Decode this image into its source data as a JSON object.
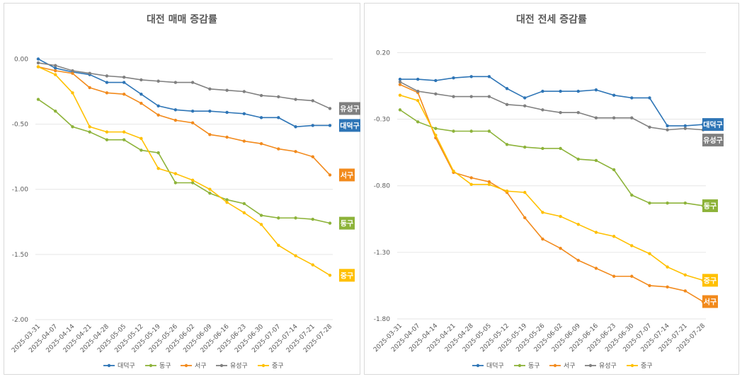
{
  "chart_data": [
    {
      "type": "line",
      "title": "대전 매매 증감률",
      "categories": [
        "2025-03-31",
        "2025-04-07",
        "2025-04-14",
        "2025-04-21",
        "2025-04-28",
        "2025-05-05",
        "2025-05-12",
        "2025-05-19",
        "2025-05-26",
        "2025-06-02",
        "2025-06-09",
        "2025-06-16",
        "2025-06-23",
        "2025-06-30",
        "2025-07-07",
        "2025-07-14",
        "2025-07-21",
        "2025-07-28"
      ],
      "ylim": [
        -2.0,
        0.1
      ],
      "yticks": [
        "0.00",
        "-0.50",
        "-1.00",
        "-1.50",
        "-2.00"
      ],
      "ytick_values": [
        0.0,
        -0.5,
        -1.0,
        -1.5,
        -2.0
      ],
      "grid": true,
      "legend": "bottom",
      "series": [
        {
          "name": "대덕구",
          "color": "#2E75B6",
          "values": [
            0.0,
            -0.07,
            -0.1,
            -0.12,
            -0.18,
            -0.18,
            -0.27,
            -0.36,
            -0.39,
            -0.4,
            -0.4,
            -0.41,
            -0.42,
            -0.45,
            -0.45,
            -0.52,
            -0.51,
            -0.51
          ]
        },
        {
          "name": "동구",
          "color": "#8DB33A",
          "values": [
            -0.31,
            -0.4,
            -0.52,
            -0.56,
            -0.62,
            -0.62,
            -0.7,
            -0.72,
            -0.95,
            -0.95,
            -1.03,
            -1.08,
            -1.11,
            -1.2,
            -1.22,
            -1.22,
            -1.23,
            -1.26
          ]
        },
        {
          "name": "서구",
          "color": "#F28A1C",
          "values": [
            -0.06,
            -0.09,
            -0.11,
            -0.22,
            -0.26,
            -0.27,
            -0.34,
            -0.43,
            -0.47,
            -0.49,
            -0.58,
            -0.6,
            -0.63,
            -0.65,
            -0.69,
            -0.71,
            -0.75,
            -0.89
          ]
        },
        {
          "name": "유성구",
          "color": "#808080",
          "values": [
            -0.03,
            -0.05,
            -0.09,
            -0.11,
            -0.13,
            -0.14,
            -0.16,
            -0.17,
            -0.18,
            -0.18,
            -0.23,
            -0.24,
            -0.25,
            -0.28,
            -0.29,
            -0.31,
            -0.32,
            -0.38
          ]
        },
        {
          "name": "중구",
          "color": "#FFC000",
          "values": [
            -0.06,
            -0.12,
            -0.26,
            -0.52,
            -0.56,
            -0.56,
            -0.61,
            -0.84,
            -0.88,
            -0.93,
            -1.0,
            -1.1,
            -1.18,
            -1.27,
            -1.43,
            -1.51,
            -1.58,
            -1.66
          ]
        }
      ]
    },
    {
      "type": "line",
      "title": "대전 전세 증감률",
      "categories": [
        "2025-03-31",
        "2025-04-07",
        "2025-04-14",
        "2025-04-21",
        "2025-04-28",
        "2025-05-05",
        "2025-05-12",
        "2025-05-19",
        "2025-05-26",
        "2025-06-02",
        "2025-06-09",
        "2025-06-16",
        "2025-06-23",
        "2025-06-30",
        "2025-07-07",
        "2025-07-14",
        "2025-07-21",
        "2025-07-28"
      ],
      "ylim": [
        -1.8,
        0.25
      ],
      "yticks": [
        "0.20",
        "-0.30",
        "-0.80",
        "-1.30",
        "-1.80"
      ],
      "ytick_values": [
        0.2,
        -0.3,
        -0.8,
        -1.3,
        -1.8
      ],
      "grid": true,
      "legend": "bottom",
      "series": [
        {
          "name": "대덕구",
          "color": "#2E75B6",
          "values": [
            0.0,
            0.0,
            -0.01,
            0.01,
            0.02,
            0.02,
            -0.07,
            -0.14,
            -0.09,
            -0.09,
            -0.09,
            -0.08,
            -0.12,
            -0.14,
            -0.14,
            -0.35,
            -0.35,
            -0.34
          ]
        },
        {
          "name": "동구",
          "color": "#8DB33A",
          "values": [
            -0.23,
            -0.32,
            -0.37,
            -0.39,
            -0.39,
            -0.39,
            -0.49,
            -0.51,
            -0.52,
            -0.52,
            -0.6,
            -0.61,
            -0.68,
            -0.87,
            -0.93,
            -0.93,
            -0.93,
            -0.95
          ]
        },
        {
          "name": "서구",
          "color": "#F28A1C",
          "values": [
            -0.04,
            -0.1,
            -0.44,
            -0.7,
            -0.74,
            -0.77,
            -0.85,
            -1.04,
            -1.2,
            -1.27,
            -1.36,
            -1.42,
            -1.48,
            -1.48,
            -1.55,
            -1.56,
            -1.59,
            -1.67
          ]
        },
        {
          "name": "유성구",
          "color": "#808080",
          "values": [
            -0.02,
            -0.09,
            -0.11,
            -0.13,
            -0.13,
            -0.13,
            -0.19,
            -0.2,
            -0.23,
            -0.25,
            -0.25,
            -0.29,
            -0.29,
            -0.29,
            -0.36,
            -0.38,
            -0.37,
            -0.38
          ]
        },
        {
          "name": "중구",
          "color": "#FFC000",
          "values": [
            -0.12,
            -0.16,
            -0.42,
            -0.69,
            -0.79,
            -0.79,
            -0.84,
            -0.85,
            -1.0,
            -1.03,
            -1.09,
            -1.15,
            -1.18,
            -1.25,
            -1.31,
            -1.41,
            -1.47,
            -1.51
          ]
        }
      ]
    }
  ]
}
